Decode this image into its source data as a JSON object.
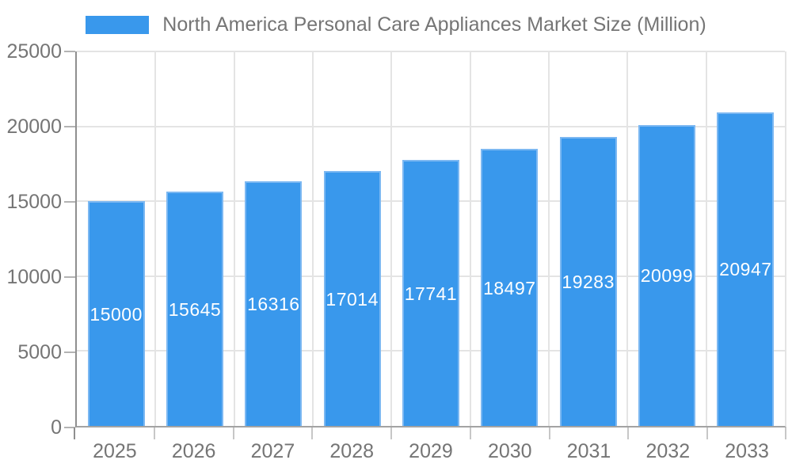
{
  "chart_data": {
    "type": "bar",
    "title": "North America Personal Care Appliances Market Size (Million)",
    "xlabel": "",
    "ylabel": "",
    "categories": [
      "2025",
      "2026",
      "2027",
      "2028",
      "2029",
      "2030",
      "2031",
      "2032",
      "2033"
    ],
    "values": [
      15000,
      15645,
      16316,
      17014,
      17741,
      18497,
      19283,
      20099,
      20947
    ],
    "yticks": [
      0,
      5000,
      10000,
      15000,
      20000,
      25000
    ],
    "ylim": [
      0,
      25000
    ],
    "legend_position": "top",
    "grid": "on",
    "value_labels": "inside-center",
    "colors": {
      "bar_fill": "#3998EC",
      "bar_border": "#7CB8F2",
      "value_label_text": "#FFFFFF",
      "axis_text": "#757575",
      "axis_line": "#8F8F8F",
      "gridline": "#E4E4E4"
    }
  }
}
